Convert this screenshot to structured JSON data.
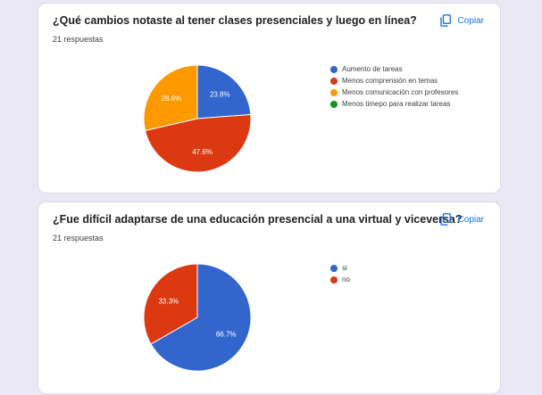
{
  "copy_label": "Copiar",
  "icons": {
    "copy": "copy-icon"
  },
  "colors": {
    "blue": "#3366cc",
    "red": "#dc3912",
    "orange": "#ff9900",
    "green": "#109618",
    "accent": "#1a73e8"
  },
  "chart_data": [
    {
      "type": "pie",
      "title": "¿Qué cambios notaste al tener clases presenciales y luego en línea?",
      "subtitle": "21 respuestas",
      "legend_position": "right",
      "labels": [
        "Aumento de tareas",
        "Menos comprensión en temas",
        "Menos comunicación con profesores",
        "Menos timepo para realizar tareas"
      ],
      "values": [
        23.8,
        47.6,
        28.6,
        0
      ],
      "value_labels": [
        "23.8%",
        "47.6%",
        "28.6%",
        ""
      ],
      "colors": [
        "#3366cc",
        "#dc3912",
        "#ff9900",
        "#109618"
      ]
    },
    {
      "type": "pie",
      "title": "¿Fue difícil adaptarse de una educación presencial a una virtual y viceversa?",
      "subtitle": "21 respuestas",
      "legend_position": "right",
      "labels": [
        "si",
        "no"
      ],
      "values": [
        66.7,
        33.3
      ],
      "value_labels": [
        "66.7%",
        "33.3%"
      ],
      "colors": [
        "#3366cc",
        "#dc3912"
      ]
    }
  ]
}
